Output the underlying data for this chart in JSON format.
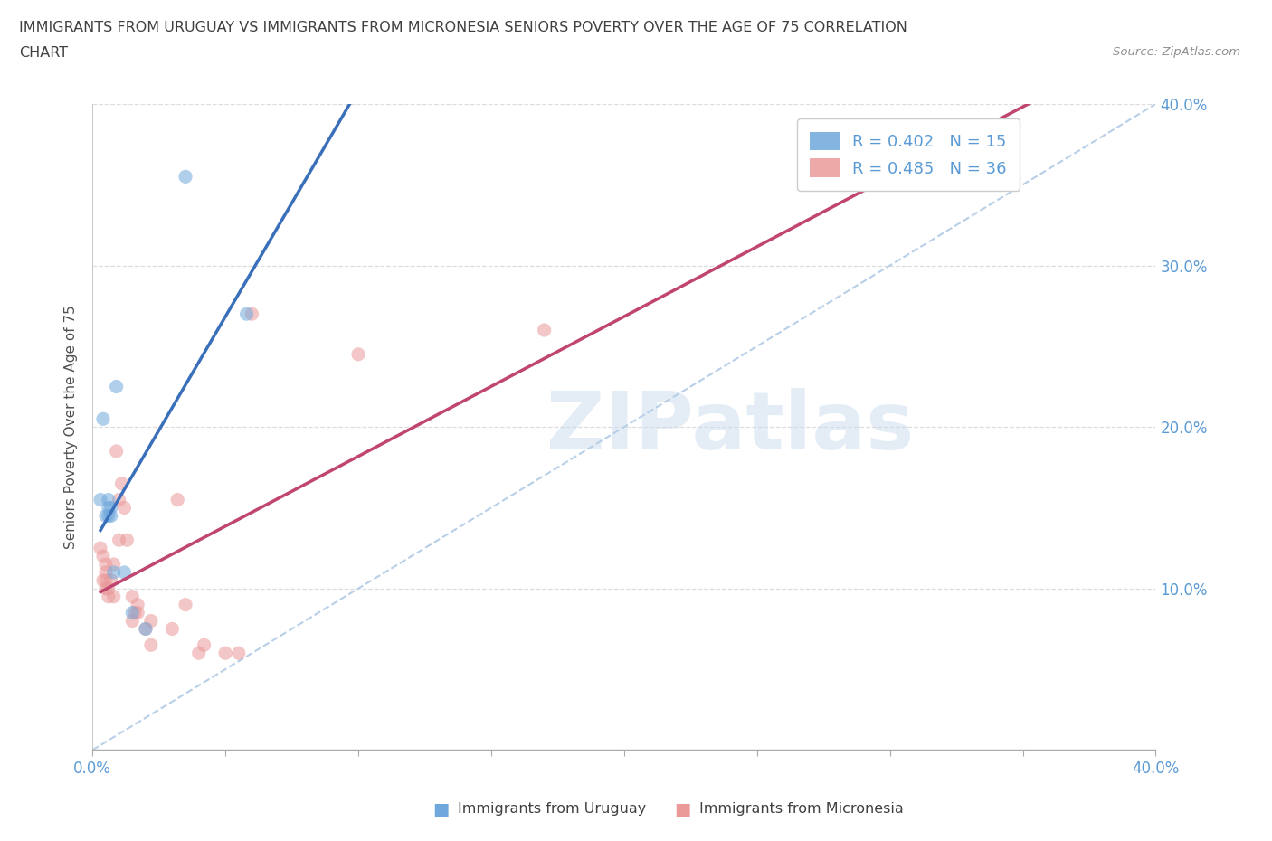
{
  "title_line1": "IMMIGRANTS FROM URUGUAY VS IMMIGRANTS FROM MICRONESIA SENIORS POVERTY OVER THE AGE OF 75 CORRELATION",
  "title_line2": "CHART",
  "source": "Source: ZipAtlas.com",
  "ylabel": "Seniors Poverty Over the Age of 75",
  "xlim": [
    0.0,
    0.4
  ],
  "ylim": [
    0.0,
    0.4
  ],
  "legend_entries": [
    {
      "label": "R = 0.402   N = 15",
      "color": "#6fa8dc"
    },
    {
      "label": "R = 0.485   N = 36",
      "color": "#ea9999"
    }
  ],
  "uruguay_scatter": [
    [
      0.003,
      0.155
    ],
    [
      0.004,
      0.205
    ],
    [
      0.005,
      0.145
    ],
    [
      0.006,
      0.145
    ],
    [
      0.006,
      0.15
    ],
    [
      0.006,
      0.155
    ],
    [
      0.007,
      0.145
    ],
    [
      0.007,
      0.15
    ],
    [
      0.008,
      0.11
    ],
    [
      0.009,
      0.225
    ],
    [
      0.012,
      0.11
    ],
    [
      0.015,
      0.085
    ],
    [
      0.02,
      0.075
    ],
    [
      0.035,
      0.355
    ],
    [
      0.058,
      0.27
    ]
  ],
  "micronesia_scatter": [
    [
      0.003,
      0.125
    ],
    [
      0.004,
      0.12
    ],
    [
      0.004,
      0.105
    ],
    [
      0.005,
      0.11
    ],
    [
      0.005,
      0.1
    ],
    [
      0.005,
      0.105
    ],
    [
      0.005,
      0.115
    ],
    [
      0.006,
      0.095
    ],
    [
      0.006,
      0.1
    ],
    [
      0.007,
      0.105
    ],
    [
      0.008,
      0.095
    ],
    [
      0.008,
      0.115
    ],
    [
      0.009,
      0.185
    ],
    [
      0.01,
      0.13
    ],
    [
      0.01,
      0.155
    ],
    [
      0.011,
      0.165
    ],
    [
      0.012,
      0.15
    ],
    [
      0.013,
      0.13
    ],
    [
      0.015,
      0.08
    ],
    [
      0.015,
      0.095
    ],
    [
      0.016,
      0.085
    ],
    [
      0.017,
      0.085
    ],
    [
      0.017,
      0.09
    ],
    [
      0.02,
      0.075
    ],
    [
      0.022,
      0.065
    ],
    [
      0.022,
      0.08
    ],
    [
      0.03,
      0.075
    ],
    [
      0.032,
      0.155
    ],
    [
      0.035,
      0.09
    ],
    [
      0.04,
      0.06
    ],
    [
      0.042,
      0.065
    ],
    [
      0.05,
      0.06
    ],
    [
      0.055,
      0.06
    ],
    [
      0.06,
      0.27
    ],
    [
      0.1,
      0.245
    ],
    [
      0.17,
      0.26
    ]
  ],
  "uruguay_color": "#6fa8dc",
  "micronesia_color": "#ea9999",
  "uruguay_line_color": "#3a6fba",
  "micronesia_line_color": "#c04570",
  "diagonal_color": "#b8cfe8",
  "background_color": "#ffffff",
  "grid_color": "#dddddd",
  "title_color": "#404040",
  "axis_label_color": "#505050",
  "tick_label_color": "#5b9bd5",
  "source_color": "#909090",
  "marker_size": 120,
  "marker_alpha": 0.55,
  "title_fontsize": 11.5,
  "legend_fontsize": 13,
  "tick_fontsize": 12,
  "ylabel_fontsize": 11,
  "watermark": "ZIPatlas"
}
